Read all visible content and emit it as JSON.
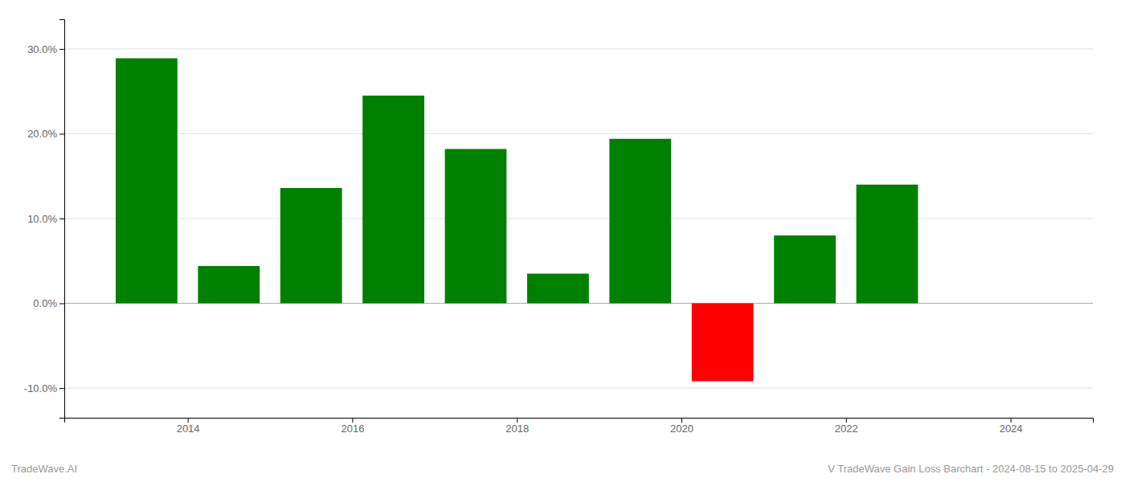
{
  "chart_data": {
    "type": "bar",
    "title": "V TradeWave Gain Loss Barchart - 2024-08-15 to 2025-04-29",
    "annotations": [
      "TradeWave.AI"
    ],
    "x": [
      2013.5,
      2014.5,
      2015.5,
      2016.5,
      2017.5,
      2018.5,
      2019.5,
      2020.5,
      2021.5,
      2022.5,
      2023.5
    ],
    "values": [
      0.289,
      0.044,
      0.136,
      0.245,
      0.182,
      0.035,
      0.194,
      -0.092,
      0.08,
      0.14,
      0.0
    ],
    "colors": [
      "#008000",
      "#008000",
      "#008000",
      "#008000",
      "#008000",
      "#008000",
      "#008000",
      "#ff0000",
      "#008000",
      "#008000",
      "#008000"
    ],
    "xlim": [
      2012.5,
      2025.0
    ],
    "xticks": [
      2014,
      2016,
      2018,
      2020,
      2022,
      2024
    ],
    "ylim": [
      -0.135,
      0.335
    ],
    "yticks": [
      {
        "value": -0.1,
        "label": "-10.0%"
      },
      {
        "value": 0.0,
        "label": "0.0%"
      },
      {
        "value": 0.1,
        "label": "10.0%"
      },
      {
        "value": 0.2,
        "label": "20.0%"
      },
      {
        "value": 0.3,
        "label": "30.0%"
      }
    ],
    "grid": true
  }
}
